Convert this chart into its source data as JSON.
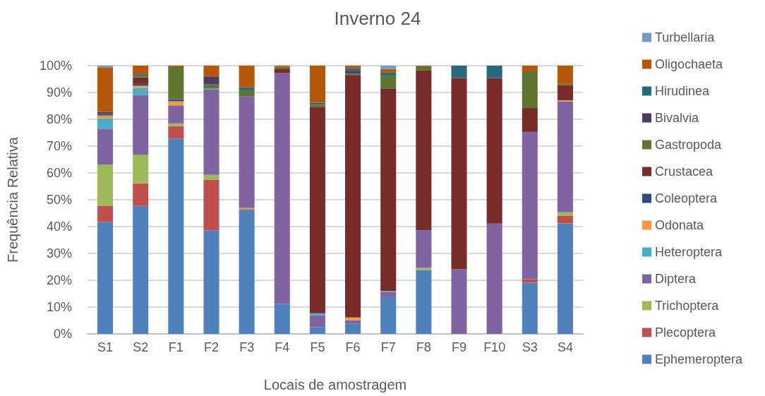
{
  "chart_data": {
    "type": "bar",
    "title": "Inverno 24",
    "xlabel": "Locais de amostragem",
    "ylabel": "Frequência Relativa",
    "categories": [
      "S1",
      "S2",
      "F1",
      "F2",
      "F3",
      "F4",
      "F5",
      "F6",
      "F7",
      "F8",
      "F9",
      "F10",
      "S3",
      "S4"
    ],
    "stacked": true,
    "grid": "y",
    "legend": "right",
    "ylim": [
      0,
      100
    ],
    "yticks": [
      {
        "value": 0,
        "label": "0%"
      },
      {
        "value": 10,
        "label": "10%"
      },
      {
        "value": 20,
        "label": "20%"
      },
      {
        "value": 30,
        "label": "30%"
      },
      {
        "value": 40,
        "label": "40%"
      },
      {
        "value": 50,
        "label": "50%"
      },
      {
        "value": 60,
        "label": "60%"
      },
      {
        "value": 70,
        "label": "70%"
      },
      {
        "value": 80,
        "label": "80%"
      },
      {
        "value": 90,
        "label": "90%"
      },
      {
        "value": 100,
        "label": "100%"
      }
    ],
    "series": [
      {
        "name": "Ephemeroptera",
        "color": "#4f81bd",
        "values": [
          41.8,
          47.7,
          72.8,
          38.6,
          46.1,
          11.2,
          2.5,
          3.9,
          13.7,
          23.7,
          0,
          0,
          19.1,
          41.2
        ]
      },
      {
        "name": "Plecoptera",
        "color": "#c0504d",
        "values": [
          6.0,
          8.4,
          4.7,
          18.9,
          0.4,
          0,
          0,
          0,
          0,
          0,
          0,
          0,
          1.3,
          2.9
        ]
      },
      {
        "name": "Trichoptera",
        "color": "#9bbb59",
        "values": [
          15.2,
          10.7,
          1.0,
          1.8,
          0.5,
          0,
          0,
          0,
          0,
          0.9,
          0,
          0,
          0,
          1.2
        ]
      },
      {
        "name": "Diptera",
        "color": "#8064a2",
        "values": [
          13.3,
          22.2,
          6.7,
          31.8,
          41.6,
          86.0,
          4.5,
          1.2,
          1.9,
          14.0,
          24.1,
          41.1,
          54.9,
          41.4
        ]
      },
      {
        "name": "Heteroptera",
        "color": "#4bacc6",
        "values": [
          4.0,
          2.7,
          0,
          0.3,
          0,
          0,
          0.7,
          0,
          0.4,
          0,
          0,
          0,
          0,
          0
        ]
      },
      {
        "name": "Odonata",
        "color": "#f79646",
        "values": [
          1.1,
          0.8,
          1.5,
          0,
          0,
          0,
          0,
          1.0,
          0,
          0,
          0,
          0,
          0,
          0.4
        ]
      },
      {
        "name": "Coleoptera",
        "color": "#2c4d75",
        "values": [
          0.6,
          0.7,
          0.8,
          0,
          0,
          0,
          0,
          0,
          0,
          0,
          0,
          0,
          0,
          0
        ]
      },
      {
        "name": "Crustacea",
        "color": "#772c2a",
        "values": [
          0,
          2.4,
          0,
          0,
          0,
          1.7,
          77.0,
          90.2,
          75.5,
          59.6,
          71.3,
          54.3,
          8.9,
          5.7
        ]
      },
      {
        "name": "Gastropoda",
        "color": "#5f7530",
        "values": [
          0,
          0.5,
          12.0,
          1.6,
          2.2,
          0.7,
          0.7,
          0.7,
          4.6,
          1.6,
          0,
          0,
          13.7,
          0.4
        ]
      },
      {
        "name": "Bivalvia",
        "color": "#4d3b62",
        "values": [
          0.7,
          0,
          0,
          3.0,
          0,
          0,
          0,
          1.1,
          0,
          0,
          0,
          0,
          0,
          0
        ]
      },
      {
        "name": "Hirudinea",
        "color": "#276a7c",
        "values": [
          0,
          0.7,
          0,
          0,
          1.1,
          0,
          0.7,
          0.9,
          1.3,
          0,
          4.6,
          4.6,
          0,
          0
        ]
      },
      {
        "name": "Oligochaeta",
        "color": "#b65708",
        "values": [
          16.7,
          3.2,
          0.5,
          4.0,
          8.1,
          0.4,
          13.9,
          1.0,
          1.4,
          0.2,
          0,
          0,
          2.1,
          6.8
        ]
      },
      {
        "name": "Turbellaria",
        "color": "#729aca",
        "values": [
          0.6,
          0,
          0,
          0,
          0,
          0,
          0,
          0,
          1.2,
          0,
          0,
          0,
          0,
          0
        ]
      }
    ]
  }
}
